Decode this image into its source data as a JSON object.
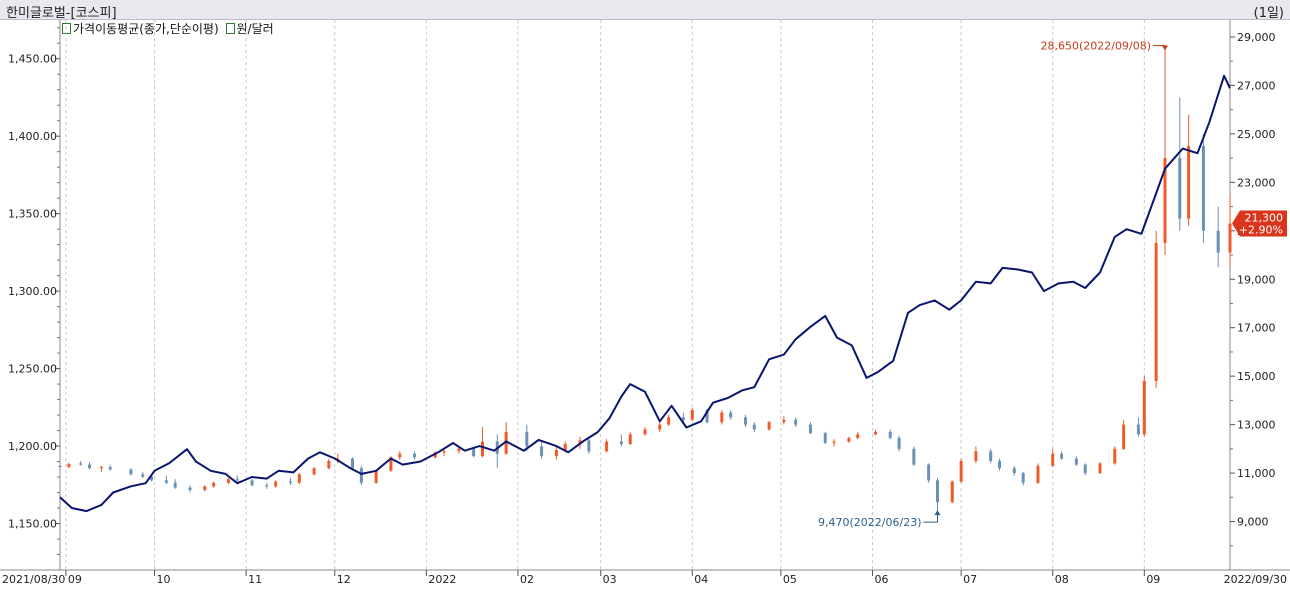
{
  "header": {
    "title": "한미글로벌-[코스피]",
    "period": "(1일)"
  },
  "legend": [
    {
      "label": "가격이동평균(종가,단순이평)",
      "color": "#2e7d32"
    },
    {
      "label": "원/달러",
      "color": "#2e7d32"
    }
  ],
  "colors": {
    "up": "#f05a28",
    "down": "#6b8fb5",
    "fx_line": "#0a1570",
    "grid": "#c8c8c8",
    "badge": "#d9341c",
    "high_label": "#c43a1b",
    "low_label": "#2f5f8a"
  },
  "chart_data": {
    "type": "line",
    "x_axis": {
      "start_label": "2021/08/30",
      "end_label": "2022/09/30",
      "month_labels": [
        "09",
        "10",
        "11",
        "12",
        "2022",
        "02",
        "03",
        "04",
        "05",
        "06",
        "07",
        "08",
        "09"
      ]
    },
    "left_axis": {
      "series": "원/달러",
      "ticks": [
        "1,150.00",
        "1,200.00",
        "1,250.00",
        "1,300.00",
        "1,350.00",
        "1,400.00",
        "1,450.00"
      ],
      "range": [
        1120,
        1475
      ]
    },
    "right_axis": {
      "series": "한미글로벌",
      "ticks": [
        "9,000",
        "11,000",
        "13,000",
        "15,000",
        "17,000",
        "19,000",
        "21,000",
        "23,000",
        "25,000",
        "27,000",
        "29,000"
      ],
      "range": [
        7000,
        29700
      ]
    },
    "fx_series": {
      "name": "원/달러",
      "points": [
        [
          "2021-08-30",
          1167
        ],
        [
          "2021-09-03",
          1160
        ],
        [
          "2021-09-08",
          1158
        ],
        [
          "2021-09-13",
          1162
        ],
        [
          "2021-09-17",
          1170
        ],
        [
          "2021-09-23",
          1174
        ],
        [
          "2021-09-28",
          1176
        ],
        [
          "2021-10-01",
          1184
        ],
        [
          "2021-10-06",
          1189
        ],
        [
          "2021-10-12",
          1198
        ],
        [
          "2021-10-15",
          1190
        ],
        [
          "2021-10-20",
          1184
        ],
        [
          "2021-10-25",
          1182
        ],
        [
          "2021-10-29",
          1176
        ],
        [
          "2021-11-03",
          1180
        ],
        [
          "2021-11-08",
          1179
        ],
        [
          "2021-11-12",
          1184
        ],
        [
          "2021-11-17",
          1183
        ],
        [
          "2021-11-22",
          1192
        ],
        [
          "2021-11-26",
          1196
        ],
        [
          "2021-12-01",
          1192
        ],
        [
          "2021-12-06",
          1186
        ],
        [
          "2021-12-10",
          1182
        ],
        [
          "2021-12-15",
          1184
        ],
        [
          "2021-12-20",
          1192
        ],
        [
          "2021-12-24",
          1188
        ],
        [
          "2021-12-30",
          1190
        ],
        [
          "2022-01-05",
          1196
        ],
        [
          "2022-01-10",
          1202
        ],
        [
          "2022-01-14",
          1197
        ],
        [
          "2022-01-19",
          1200
        ],
        [
          "2022-01-24",
          1197
        ],
        [
          "2022-01-28",
          1203
        ],
        [
          "2022-02-03",
          1197
        ],
        [
          "2022-02-08",
          1204
        ],
        [
          "2022-02-14",
          1200
        ],
        [
          "2022-02-18",
          1196
        ],
        [
          "2022-02-23",
          1203
        ],
        [
          "2022-02-28",
          1209
        ],
        [
          "2022-03-04",
          1218
        ],
        [
          "2022-03-08",
          1232
        ],
        [
          "2022-03-11",
          1240
        ],
        [
          "2022-03-16",
          1235
        ],
        [
          "2022-03-21",
          1216
        ],
        [
          "2022-03-25",
          1226
        ],
        [
          "2022-03-30",
          1212
        ],
        [
          "2022-04-04",
          1216
        ],
        [
          "2022-04-08",
          1228
        ],
        [
          "2022-04-13",
          1231
        ],
        [
          "2022-04-18",
          1236
        ],
        [
          "2022-04-22",
          1238
        ],
        [
          "2022-04-27",
          1256
        ],
        [
          "2022-05-02",
          1259
        ],
        [
          "2022-05-06",
          1269
        ],
        [
          "2022-05-11",
          1277
        ],
        [
          "2022-05-16",
          1284
        ],
        [
          "2022-05-20",
          1270
        ],
        [
          "2022-05-25",
          1265
        ],
        [
          "2022-05-30",
          1244
        ],
        [
          "2022-06-03",
          1248
        ],
        [
          "2022-06-08",
          1255
        ],
        [
          "2022-06-13",
          1286
        ],
        [
          "2022-06-17",
          1291
        ],
        [
          "2022-06-22",
          1294
        ],
        [
          "2022-06-27",
          1288
        ],
        [
          "2022-07-01",
          1294
        ],
        [
          "2022-07-06",
          1306
        ],
        [
          "2022-07-11",
          1305
        ],
        [
          "2022-07-15",
          1315
        ],
        [
          "2022-07-20",
          1314
        ],
        [
          "2022-07-25",
          1312
        ],
        [
          "2022-07-29",
          1300
        ],
        [
          "2022-08-03",
          1305
        ],
        [
          "2022-08-08",
          1306
        ],
        [
          "2022-08-12",
          1302
        ],
        [
          "2022-08-17",
          1312
        ],
        [
          "2022-08-22",
          1335
        ],
        [
          "2022-08-26",
          1340
        ],
        [
          "2022-08-31",
          1337
        ],
        [
          "2022-09-05",
          1363
        ],
        [
          "2022-09-08",
          1379
        ],
        [
          "2022-09-14",
          1392
        ],
        [
          "2022-09-19",
          1389
        ],
        [
          "2022-09-23",
          1409
        ],
        [
          "2022-09-28",
          1439
        ],
        [
          "2022-09-30",
          1431
        ]
      ]
    },
    "price_candles": {
      "name": "한미글로벌",
      "up_color": "#f05a28",
      "down_color": "#6b8fb5",
      "ohlc": [
        [
          "2021-08-30",
          11300,
          11350,
          11200,
          11250
        ],
        [
          "2021-09-02",
          11250,
          11420,
          11200,
          11380
        ],
        [
          "2021-09-06",
          11400,
          11500,
          11300,
          11350
        ],
        [
          "2021-09-09",
          11350,
          11450,
          11150,
          11200
        ],
        [
          "2021-09-13",
          11200,
          11300,
          11050,
          11250
        ],
        [
          "2021-09-16",
          11250,
          11350,
          11100,
          11150
        ],
        [
          "2021-09-23",
          11150,
          11200,
          10900,
          10950
        ],
        [
          "2021-09-27",
          10950,
          11050,
          10800,
          10850
        ],
        [
          "2021-09-30",
          10850,
          10950,
          10650,
          10700
        ],
        [
          "2021-10-05",
          10700,
          10900,
          10550,
          10600
        ],
        [
          "2021-10-08",
          10600,
          10750,
          10350,
          10400
        ],
        [
          "2021-10-13",
          10400,
          10500,
          10200,
          10300
        ],
        [
          "2021-10-18",
          10300,
          10500,
          10250,
          10450
        ],
        [
          "2021-10-21",
          10450,
          10650,
          10400,
          10600
        ],
        [
          "2021-10-26",
          10600,
          10800,
          10550,
          10750
        ],
        [
          "2021-10-29",
          10750,
          10900,
          10650,
          10700
        ],
        [
          "2021-11-03",
          10700,
          10750,
          10450,
          10500
        ],
        [
          "2021-11-08",
          10500,
          10600,
          10350,
          10450
        ],
        [
          "2021-11-11",
          10450,
          10700,
          10400,
          10650
        ],
        [
          "2021-11-16",
          10650,
          10800,
          10500,
          10600
        ],
        [
          "2021-11-19",
          10600,
          11000,
          10550,
          10950
        ],
        [
          "2021-11-24",
          10950,
          11250,
          10900,
          11200
        ],
        [
          "2021-11-29",
          11200,
          11600,
          11150,
          11500
        ],
        [
          "2021-12-02",
          11500,
          11800,
          11400,
          11600
        ],
        [
          "2021-12-07",
          11600,
          11650,
          11100,
          11200
        ],
        [
          "2021-12-10",
          11200,
          11300,
          10500,
          10600
        ],
        [
          "2021-12-15",
          10600,
          11150,
          10550,
          11100
        ],
        [
          "2021-12-20",
          11100,
          11700,
          11050,
          11650
        ],
        [
          "2021-12-23",
          11650,
          11900,
          11550,
          11800
        ],
        [
          "2021-12-28",
          11800,
          11900,
          11550,
          11650
        ],
        [
          "2022-01-04",
          11650,
          11900,
          11600,
          11850
        ],
        [
          "2022-01-07",
          11850,
          12000,
          11700,
          11900
        ],
        [
          "2022-01-12",
          11900,
          12100,
          11800,
          12000
        ],
        [
          "2022-01-17",
          12000,
          12050,
          11650,
          11700
        ],
        [
          "2022-01-20",
          11700,
          12900,
          11650,
          12300
        ],
        [
          "2022-01-25",
          12300,
          12600,
          11200,
          11800
        ],
        [
          "2022-01-28",
          11800,
          13100,
          11750,
          12700
        ],
        [
          "2022-02-04",
          12700,
          13000,
          11900,
          12100
        ],
        [
          "2022-02-09",
          12100,
          12300,
          11600,
          11700
        ],
        [
          "2022-02-14",
          11700,
          12100,
          11550,
          11950
        ],
        [
          "2022-02-17",
          11950,
          12300,
          11850,
          12200
        ],
        [
          "2022-02-22",
          12200,
          12500,
          12000,
          12350
        ],
        [
          "2022-02-25",
          12350,
          12450,
          11800,
          11900
        ],
        [
          "2022-03-03",
          11900,
          12400,
          11850,
          12300
        ],
        [
          "2022-03-08",
          12300,
          12600,
          12100,
          12200
        ],
        [
          "2022-03-11",
          12200,
          12700,
          12150,
          12600
        ],
        [
          "2022-03-16",
          12600,
          12900,
          12550,
          12800
        ],
        [
          "2022-03-21",
          12800,
          13100,
          12700,
          13000
        ],
        [
          "2022-03-24",
          13000,
          13400,
          12950,
          13300
        ],
        [
          "2022-03-29",
          13300,
          13500,
          13100,
          13200
        ],
        [
          "2022-04-01",
          13200,
          13700,
          13150,
          13600
        ],
        [
          "2022-04-06",
          13600,
          13650,
          13050,
          13100
        ],
        [
          "2022-04-11",
          13100,
          13600,
          13000,
          13500
        ],
        [
          "2022-04-14",
          13500,
          13600,
          13200,
          13300
        ],
        [
          "2022-04-19",
          13300,
          13400,
          12900,
          13000
        ],
        [
          "2022-04-22",
          13000,
          13100,
          12700,
          12800
        ],
        [
          "2022-04-27",
          12800,
          13150,
          12750,
          13100
        ],
        [
          "2022-05-02",
          13100,
          13350,
          13000,
          13200
        ],
        [
          "2022-05-06",
          13200,
          13300,
          12900,
          13000
        ],
        [
          "2022-05-11",
          13000,
          13100,
          12600,
          12650
        ],
        [
          "2022-05-16",
          12650,
          12700,
          12200,
          12250
        ],
        [
          "2022-05-19",
          12250,
          12400,
          12100,
          12300
        ],
        [
          "2022-05-24",
          12300,
          12500,
          12250,
          12450
        ],
        [
          "2022-05-27",
          12450,
          12700,
          12400,
          12600
        ],
        [
          "2022-06-02",
          12600,
          12800,
          12550,
          12700
        ],
        [
          "2022-06-07",
          12700,
          12800,
          12400,
          12450
        ],
        [
          "2022-06-10",
          12450,
          12550,
          11900,
          12000
        ],
        [
          "2022-06-15",
          12000,
          12100,
          11300,
          11350
        ],
        [
          "2022-06-20",
          11350,
          11400,
          10600,
          10700
        ],
        [
          "2022-06-23",
          10700,
          10800,
          9470,
          9800
        ],
        [
          "2022-06-28",
          9800,
          10700,
          9750,
          10650
        ],
        [
          "2022-07-01",
          10650,
          11600,
          10600,
          11500
        ],
        [
          "2022-07-06",
          11500,
          12100,
          11400,
          11900
        ],
        [
          "2022-07-11",
          11900,
          12000,
          11400,
          11500
        ],
        [
          "2022-07-14",
          11500,
          11600,
          11100,
          11200
        ],
        [
          "2022-07-19",
          11200,
          11300,
          10900,
          11000
        ],
        [
          "2022-07-22",
          11000,
          11050,
          10500,
          10600
        ],
        [
          "2022-07-27",
          10600,
          11400,
          10550,
          11300
        ],
        [
          "2022-08-01",
          11300,
          12000,
          11250,
          11800
        ],
        [
          "2022-08-04",
          11800,
          11900,
          11550,
          11600
        ],
        [
          "2022-08-09",
          11600,
          11700,
          11300,
          11350
        ],
        [
          "2022-08-12",
          11350,
          11400,
          10900,
          11000
        ],
        [
          "2022-08-17",
          11000,
          11450,
          10950,
          11400
        ],
        [
          "2022-08-22",
          11400,
          12100,
          11350,
          12000
        ],
        [
          "2022-08-25",
          12000,
          13200,
          11950,
          13000
        ],
        [
          "2022-08-30",
          13000,
          13300,
          12500,
          12600
        ],
        [
          "2022-09-01",
          12600,
          15000,
          12500,
          14800
        ],
        [
          "2022-09-05",
          14800,
          21000,
          14500,
          20500
        ],
        [
          "2022-09-08",
          20500,
          28650,
          20000,
          24000
        ],
        [
          "2022-09-13",
          24000,
          26500,
          21000,
          21500
        ],
        [
          "2022-09-16",
          21500,
          25800,
          21200,
          24500
        ],
        [
          "2022-09-21",
          24500,
          25000,
          20500,
          21000
        ],
        [
          "2022-09-26",
          21000,
          22000,
          19500,
          20100
        ],
        [
          "2022-09-30",
          20100,
          22500,
          19500,
          21300
        ]
      ]
    },
    "annotations": {
      "high": {
        "text": "28,650(2022/09/08)",
        "date": "2022-09-08",
        "value": 28650
      },
      "low": {
        "text": "9,470(2022/06/23)",
        "date": "2022-06-23",
        "value": 9470
      }
    },
    "last_price": {
      "price": "21,300",
      "change": "+2.90%",
      "value": 21300
    },
    "grid": true
  }
}
